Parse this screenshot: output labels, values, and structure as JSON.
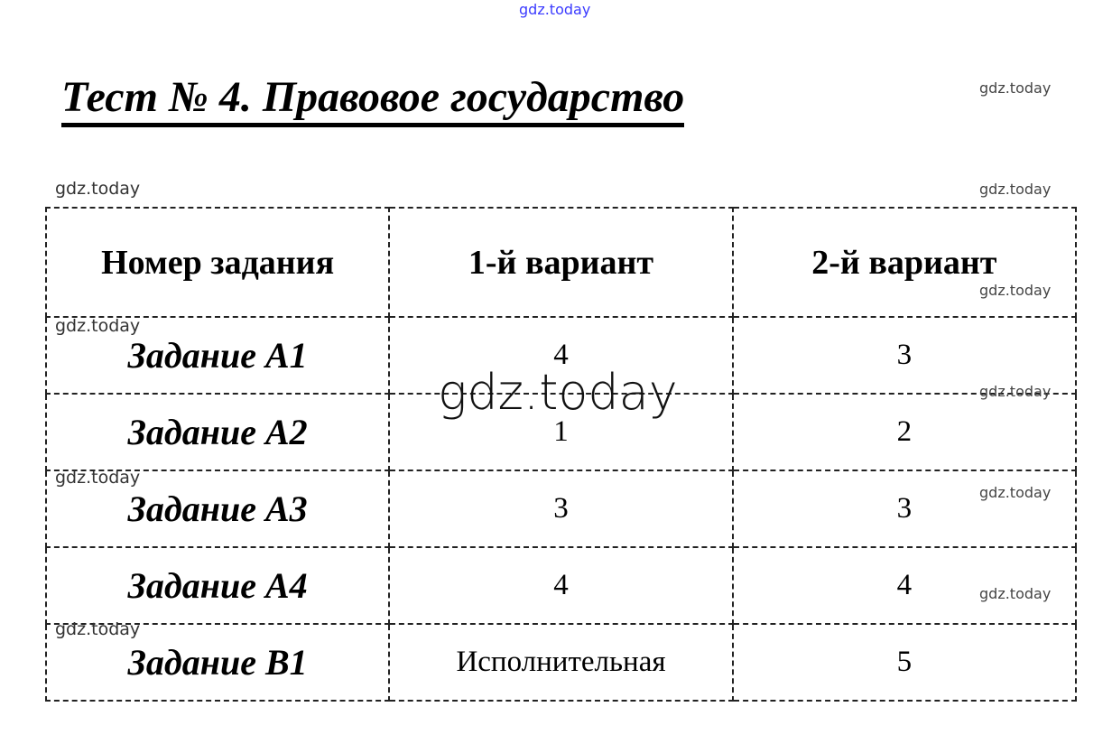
{
  "title": "Тест № 4. Правовое государство",
  "table": {
    "headers": [
      "Номер задания",
      "1-й вариант",
      "2-й вариант"
    ],
    "rows": [
      [
        "Задание А1",
        "4",
        "3"
      ],
      [
        "Задание А2",
        "1",
        "2"
      ],
      [
        "Задание А3",
        "3",
        "3"
      ],
      [
        "Задание А4",
        "4",
        "4"
      ],
      [
        "Задание В1",
        "Исполнительная",
        "5"
      ]
    ]
  },
  "watermark": "gdz.today"
}
